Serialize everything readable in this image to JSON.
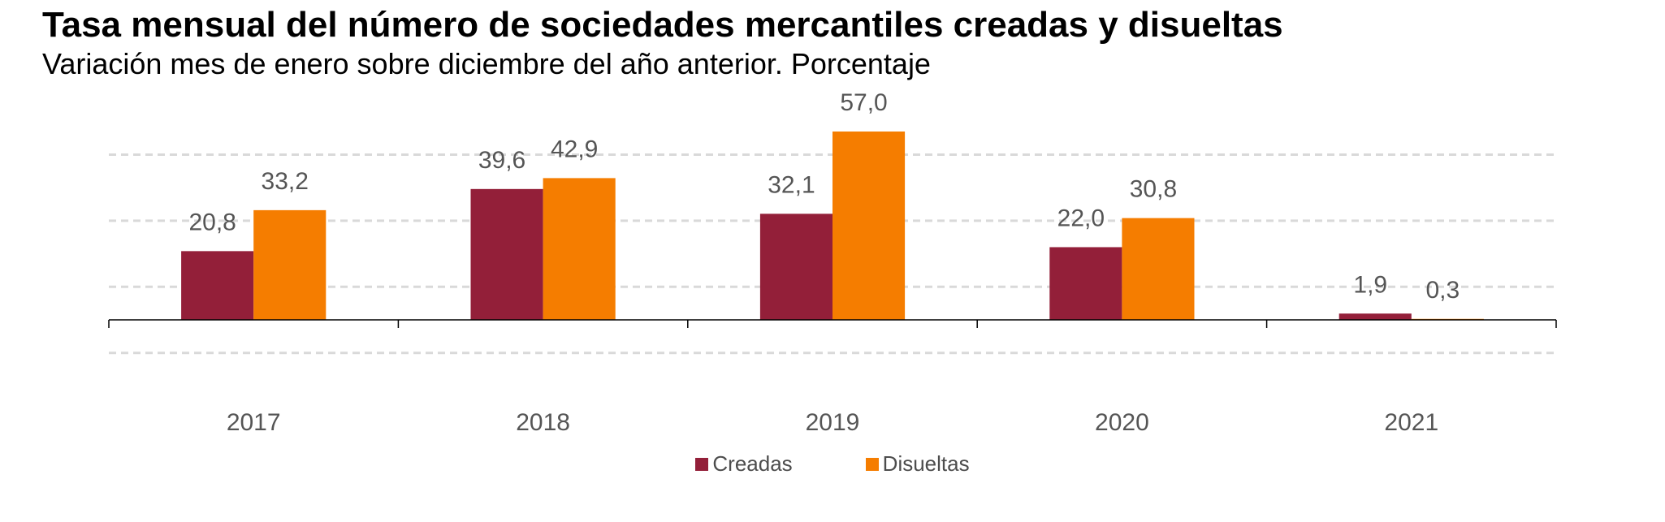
{
  "header": {
    "title": "Tasa mensual del número de sociedades mercantiles creadas y disueltas",
    "subtitle": "Variación mes de enero sobre diciembre del año anterior. Porcentaje"
  },
  "colors": {
    "creadas": "#931F39",
    "disueltas": "#F57D00",
    "label_text": "#555555",
    "gridline": "#d9d9d9",
    "axis": "#000000"
  },
  "legend": {
    "items": [
      {
        "label": "Creadas",
        "color": "#931F39"
      },
      {
        "label": "Disueltas",
        "color": "#F57D00"
      }
    ],
    "placement": "bottom-center"
  },
  "chart_data": {
    "type": "bar",
    "title": "Tasa mensual del número de sociedades mercantiles creadas y disueltas",
    "subtitle": "Variación mes de enero sobre diciembre del año anterior. Porcentaje",
    "xlabel": "",
    "ylabel": "",
    "categories": [
      "2017",
      "2018",
      "2019",
      "2020",
      "2021"
    ],
    "series": [
      {
        "name": "Creadas",
        "values": [
          20.8,
          39.6,
          32.1,
          22.0,
          1.9
        ],
        "labels": [
          "20,8",
          "39,6",
          "32,1",
          "22,0",
          "1,9"
        ]
      },
      {
        "name": "Disueltas",
        "values": [
          33.2,
          42.9,
          57.0,
          30.8,
          0.3
        ],
        "labels": [
          "33,2",
          "42,9",
          "57,0",
          "30,8",
          "0,3"
        ]
      }
    ],
    "ylim": [
      -20,
      60
    ],
    "gridlines": [
      -10,
      10,
      30,
      50
    ],
    "grid": true,
    "grid_style": "dashed",
    "y_axis_visible": false,
    "legend_position": "bottom"
  }
}
